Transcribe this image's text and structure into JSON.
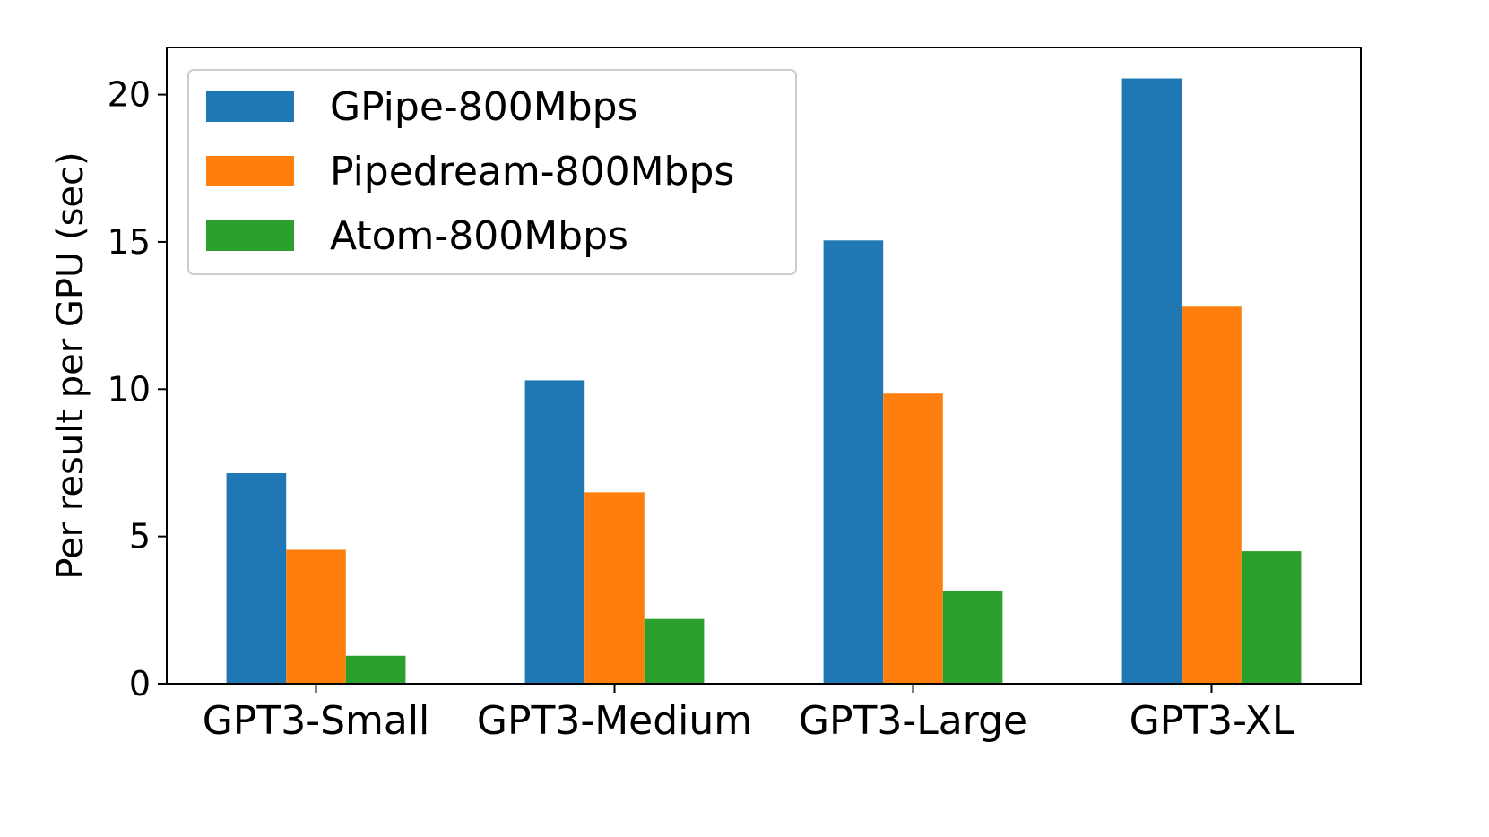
{
  "chart_data": {
    "type": "bar",
    "title": "",
    "xlabel": "",
    "ylabel": "Per result per GPU (sec)",
    "categories": [
      "GPT3-Small",
      "GPT3-Medium",
      "GPT3-Large",
      "GPT3-XL"
    ],
    "series": [
      {
        "name": "GPipe-800Mbps",
        "values": [
          7.15,
          10.3,
          15.05,
          20.55
        ],
        "color": "#1f77b4"
      },
      {
        "name": "Pipedream-800Mbps",
        "values": [
          4.55,
          6.5,
          9.85,
          12.8
        ],
        "color": "#ff7f0e"
      },
      {
        "name": "Atom-800Mbps",
        "values": [
          0.95,
          2.2,
          3.15,
          4.5
        ],
        "color": "#2ca02c"
      }
    ],
    "yticks": [
      0,
      5,
      10,
      15,
      20
    ],
    "ylim": [
      0,
      21.6
    ],
    "grid": false,
    "legend_position": "top-left"
  }
}
